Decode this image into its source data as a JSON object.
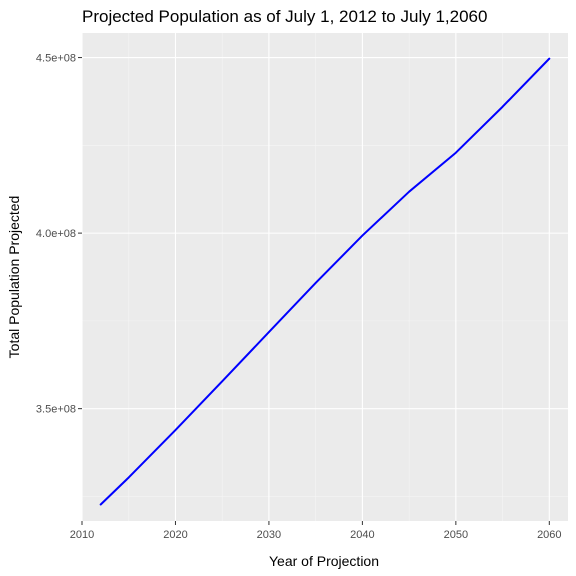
{
  "chart_data": {
    "type": "line",
    "title": "Projected Population as of July 1, 2012 to July 1,2060",
    "xlabel": "Year of Projection",
    "ylabel": "Total Population Projected",
    "xlim": [
      2010,
      2062
    ],
    "ylim": [
      318000000.0,
      457000000.0
    ],
    "x_ticks": [
      2010,
      2020,
      2030,
      2040,
      2050,
      2060
    ],
    "x_tick_labels": [
      "2010",
      "2020",
      "2030",
      "2040",
      "2050",
      "2060"
    ],
    "y_ticks": [
      350000000.0,
      400000000.0,
      450000000.0
    ],
    "y_tick_labels": [
      "3.5e+08",
      "4.0e+08",
      "4.5e+08"
    ],
    "grid": true,
    "series": [
      {
        "color": "#0000ff",
        "x": [
          2012,
          2015,
          2020,
          2025,
          2030,
          2035,
          2040,
          2045,
          2050,
          2055,
          2060
        ],
        "y": [
          322700000,
          330400000,
          343900000,
          357800000,
          371800000,
          385800000,
          399300000,
          411800000,
          422900000,
          436000000,
          449700000
        ]
      }
    ],
    "colors": {
      "panel_background": "#ebebeb",
      "grid_major": "#ffffff",
      "grid_minor": "#f5f5f5",
      "line": "#0000ff",
      "tick_text": "#4d4d4d",
      "tick_mark": "#333333"
    }
  }
}
